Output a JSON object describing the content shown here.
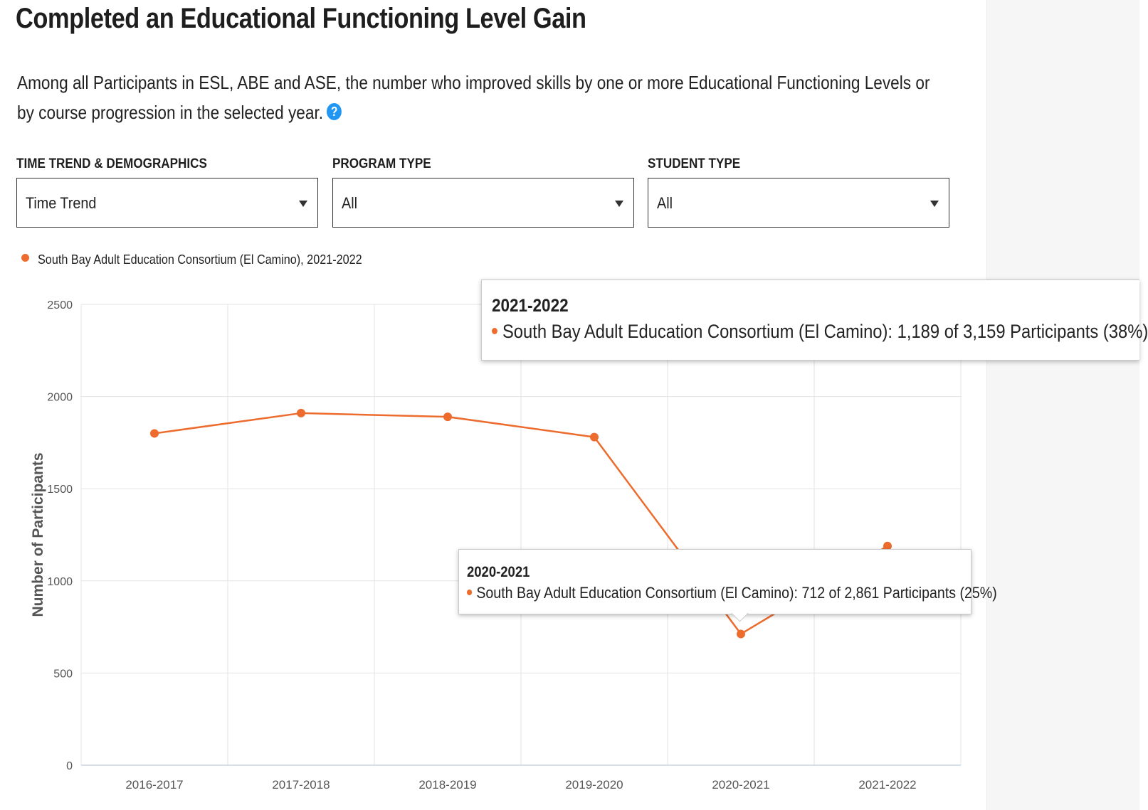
{
  "page": {
    "title": "Completed an Educational Functioning Level Gain",
    "description": "Among all Participants in ESL, ABE and ASE, the number who improved skills by one or more Educational Functioning Levels or by course progression in the selected year."
  },
  "filters": {
    "time_trend": {
      "label": "TIME TREND & DEMOGRAPHICS",
      "value": "Time Trend"
    },
    "program_type": {
      "label": "PROGRAM TYPE",
      "value": "All"
    },
    "student_type": {
      "label": "STUDENT TYPE",
      "value": "All"
    }
  },
  "legend": {
    "label": "South Bay Adult Education Consortium (El Camino), 2021-2022",
    "color": "#ec6b2d"
  },
  "tooltips": [
    {
      "title": "2021-2022",
      "text": "South Bay Adult Education Consortium (El Camino): 1,189 of 3,159 Participants (38%)"
    },
    {
      "title": "2020-2021",
      "text": "South Bay Adult Education Consortium (El Camino): 712 of 2,861 Participants (25%)"
    }
  ],
  "chart_data": {
    "type": "line",
    "categories": [
      "2016-2017",
      "2017-2018",
      "2018-2019",
      "2019-2020",
      "2020-2021",
      "2021-2022"
    ],
    "series": [
      {
        "name": "South Bay Adult Education Consortium (El Camino), 2021-2022",
        "values": [
          1800,
          1910,
          1890,
          1780,
          712,
          1189
        ],
        "color": "#ec6b2d"
      }
    ],
    "ylabel": "Number of Participants",
    "ylim": [
      0,
      2500
    ],
    "yticks": [
      0,
      500,
      1000,
      1500,
      2000,
      2500
    ],
    "grid": true
  }
}
